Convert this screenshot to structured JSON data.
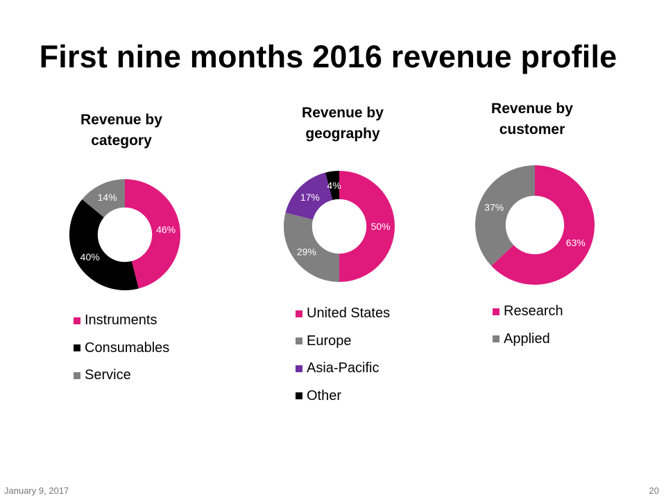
{
  "title": "First nine months 2016 revenue profile",
  "colors": {
    "pink": "#e0197d",
    "black": "#000000",
    "gray": "#808080",
    "purple": "#7030a0"
  },
  "chart_data": [
    {
      "type": "pie",
      "style": "donut",
      "title": [
        "Revenue by",
        "category"
      ],
      "slices": [
        {
          "label": "Instruments",
          "value": 46,
          "display": "46%",
          "color": "#e0197d"
        },
        {
          "label": "Consumables",
          "value": 40,
          "display": "40%",
          "color": "#000000"
        },
        {
          "label": "Service",
          "value": 14,
          "display": "14%",
          "color": "#808080"
        }
      ]
    },
    {
      "type": "pie",
      "style": "donut",
      "title": [
        "Revenue by",
        "geography"
      ],
      "slices": [
        {
          "label": "United States",
          "value": 50,
          "display": "50%",
          "color": "#e0197d"
        },
        {
          "label": "Europe",
          "value": 29,
          "display": "29%",
          "color": "#808080"
        },
        {
          "label": "Asia-Pacific",
          "value": 17,
          "display": "17%",
          "color": "#7030a0"
        },
        {
          "label": "Other",
          "value": 4,
          "display": "4%",
          "color": "#000000"
        }
      ]
    },
    {
      "type": "pie",
      "style": "donut",
      "title": [
        "Revenue by",
        "customer"
      ],
      "slices": [
        {
          "label": "Research",
          "value": 63,
          "display": "63%",
          "color": "#e0197d"
        },
        {
          "label": "Applied",
          "value": 37,
          "display": "37%",
          "color": "#808080"
        }
      ]
    }
  ],
  "footer": {
    "date": "January 9, 2017",
    "page": "20"
  }
}
